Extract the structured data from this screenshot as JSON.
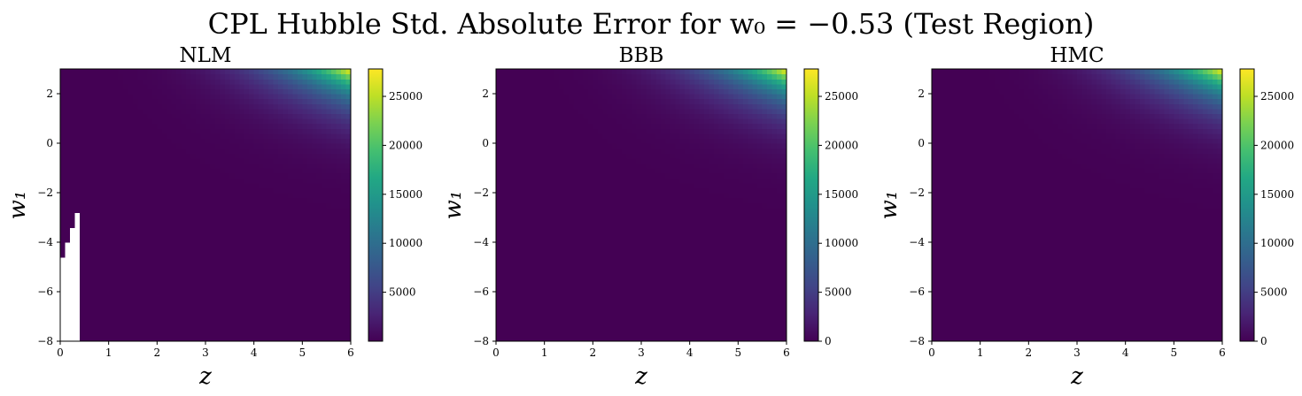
{
  "chart_data": {
    "type": "heatmap",
    "suptitle": "CPL Hubble Std. Absolute Error for w₀ = −0.53 (Test Region)",
    "colormap": "viridis",
    "xlabel": "z",
    "ylabel": "w₁",
    "xlim": [
      0,
      6
    ],
    "ylim": [
      -8,
      3
    ],
    "xticks": [
      0,
      1,
      2,
      3,
      4,
      5,
      6
    ],
    "yticks": [
      -8,
      -6,
      -4,
      -2,
      0,
      2
    ],
    "panels": [
      {
        "title": "NLM",
        "colorbar_range": [
          0,
          27800
        ],
        "colorbar_ticks": [
          5000,
          10000,
          15000,
          20000,
          25000
        ],
        "peak_value": 27800,
        "missing_region": "white (NaN) cells for z < about 0.4 and w₁ < about −2.4"
      },
      {
        "title": "BBB",
        "colorbar_range": [
          0,
          27800
        ],
        "colorbar_ticks": [
          0,
          5000,
          10000,
          15000,
          20000,
          25000
        ],
        "peak_value": 27800
      },
      {
        "title": "HMC",
        "colorbar_range": [
          0,
          27800
        ],
        "colorbar_ticks": [
          0,
          5000,
          10000,
          15000,
          20000,
          25000
        ],
        "peak_value": 27800
      }
    ]
  }
}
